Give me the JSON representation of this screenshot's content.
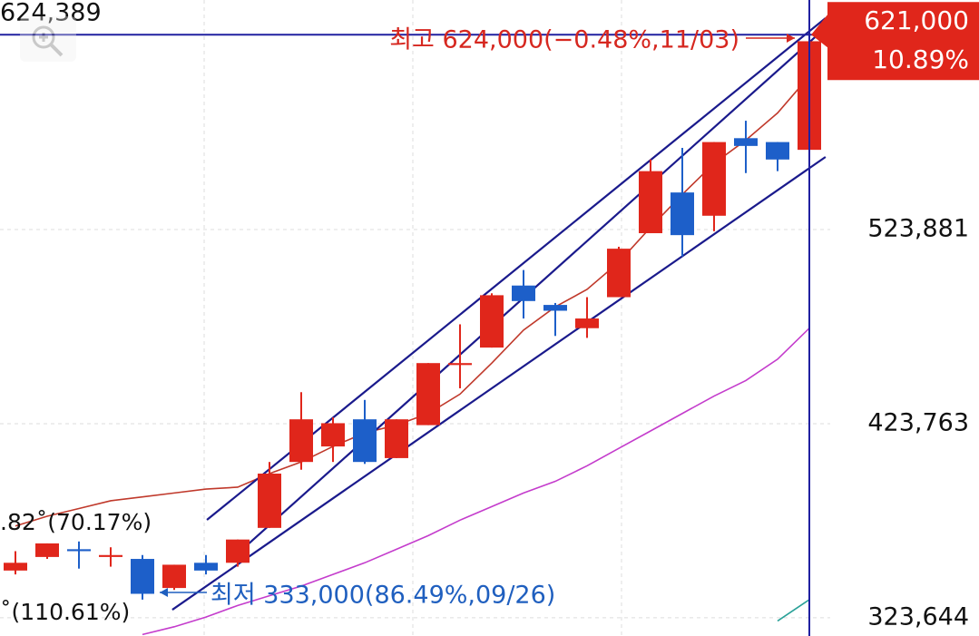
{
  "chart_data": {
    "type": "candlestick",
    "ylim": [
      314241,
      642271
    ],
    "yticks": [
      {
        "value": 523881,
        "label": "523,881"
      },
      {
        "value": 423763,
        "label": "423,763"
      },
      {
        "value": 323644,
        "label": "323,644"
      }
    ],
    "grid": true,
    "up_color": "#e0261b",
    "down_color": "#1d5fc9",
    "open": [
      348000,
      355000,
      359000,
      355000,
      354000,
      339000,
      352000,
      352000,
      370000,
      404000,
      412000,
      426000,
      406000,
      423000,
      454000,
      463000,
      495000,
      485000,
      473000,
      489000,
      522000,
      543000,
      531000,
      571000,
      569000,
      565000
    ],
    "high": [
      358000,
      362000,
      363000,
      360000,
      356000,
      351000,
      356000,
      364000,
      404000,
      440000,
      427000,
      436000,
      426000,
      455000,
      475000,
      491000,
      503000,
      486000,
      489000,
      515000,
      560000,
      566000,
      569000,
      580000,
      569000,
      624000
    ],
    "low": [
      346000,
      354000,
      349000,
      350000,
      333000,
      338000,
      346000,
      350000,
      370000,
      400000,
      404000,
      403000,
      406000,
      423000,
      442000,
      463000,
      478000,
      469000,
      468000,
      489000,
      522000,
      510000,
      523000,
      553000,
      554000,
      565000
    ],
    "close": [
      352000,
      362000,
      358000,
      356000,
      336000,
      351000,
      348000,
      364000,
      398000,
      426000,
      424000,
      404000,
      426000,
      455000,
      455000,
      490000,
      487000,
      482000,
      478000,
      514000,
      554000,
      521000,
      569000,
      567000,
      560000,
      621000
    ],
    "ma_lines": [
      {
        "color": "#c0392b",
        "values": [
          371000,
          376000,
          380000,
          384000,
          386000,
          388000,
          390000,
          391000,
          398000,
          404000,
          412000,
          419000,
          423000,
          429000,
          439000,
          455000,
          472000,
          484000,
          493000,
          507000,
          525000,
          542000,
          558000,
          570000,
          584000,
          603000
        ]
      },
      {
        "color": "#c43ccc",
        "values": [
          null,
          null,
          null,
          null,
          315000,
          319000,
          324000,
          330000,
          335000,
          340000,
          346000,
          352000,
          359000,
          366000,
          374000,
          381000,
          388000,
          394000,
          402000,
          411000,
          420000,
          429000,
          438000,
          446000,
          457000,
          473000
        ]
      },
      {
        "color": "#2aa198",
        "values": [
          null,
          null,
          null,
          null,
          null,
          null,
          null,
          null,
          null,
          null,
          null,
          null,
          null,
          null,
          null,
          null,
          null,
          null,
          null,
          null,
          null,
          null,
          null,
          null,
          322000,
          333000
        ]
      }
    ],
    "trend_lines": [
      {
        "color": "#1a1a8c",
        "from": [
          6.03,
          374121
        ],
        "to": [
          25.51,
          632925
        ]
      },
      {
        "color": "#1a1a8c",
        "from": [
          7,
          356805
        ],
        "to": [
          25.37,
          625905
        ]
      },
      {
        "color": "#1a1a8c",
        "from": [
          4.94,
          327789
        ],
        "to": [
          25.51,
          561321
        ]
      }
    ],
    "crosshair": {
      "value": 624389,
      "label": "624,389",
      "index": 25,
      "color": "#2020a0"
    },
    "price_tag": {
      "label": "621,000",
      "change": "10.89%",
      "color": "#e0261b"
    },
    "annotations": {
      "high": "최고 624,000(−0.48%,11/03)",
      "low": "최저 333,000(86.49%,09/26)",
      "left_upper": ".82˚(70.17%)",
      "left_lower": "˚(110.61%)"
    }
  }
}
